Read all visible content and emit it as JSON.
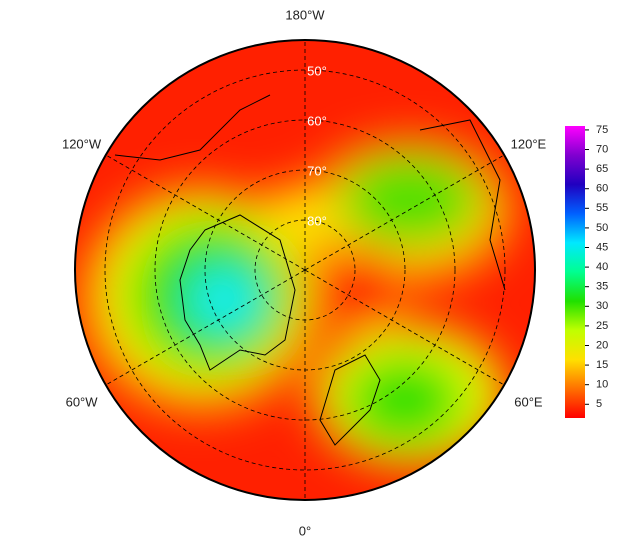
{
  "map": {
    "longitude_labels": [
      {
        "value": -180,
        "label": "180°W"
      },
      {
        "value": -120,
        "label": "120°W"
      },
      {
        "value": 120,
        "label": "120°E"
      },
      {
        "value": -60,
        "label": "60°W"
      },
      {
        "value": 60,
        "label": "60°E"
      },
      {
        "value": 0,
        "label": "0°"
      }
    ],
    "latitude_labels": [
      {
        "value": 50,
        "label": "50°"
      },
      {
        "value": 60,
        "label": "60°"
      },
      {
        "value": 70,
        "label": "70°"
      },
      {
        "value": 80,
        "label": "80°"
      }
    ],
    "colorbar": {
      "range": [
        1.5,
        76
      ],
      "ticks": [
        5,
        10,
        15,
        20,
        25,
        30,
        35,
        40,
        45,
        50,
        55,
        60,
        65,
        70,
        75
      ],
      "colors": [
        "#ff0000",
        "#ff7000",
        "#ffe000",
        "#c0ff00",
        "#20e000",
        "#00ff90",
        "#00e8ff",
        "#0060ff",
        "#2000c0",
        "#8000d0",
        "#ff00ff"
      ]
    }
  }
}
